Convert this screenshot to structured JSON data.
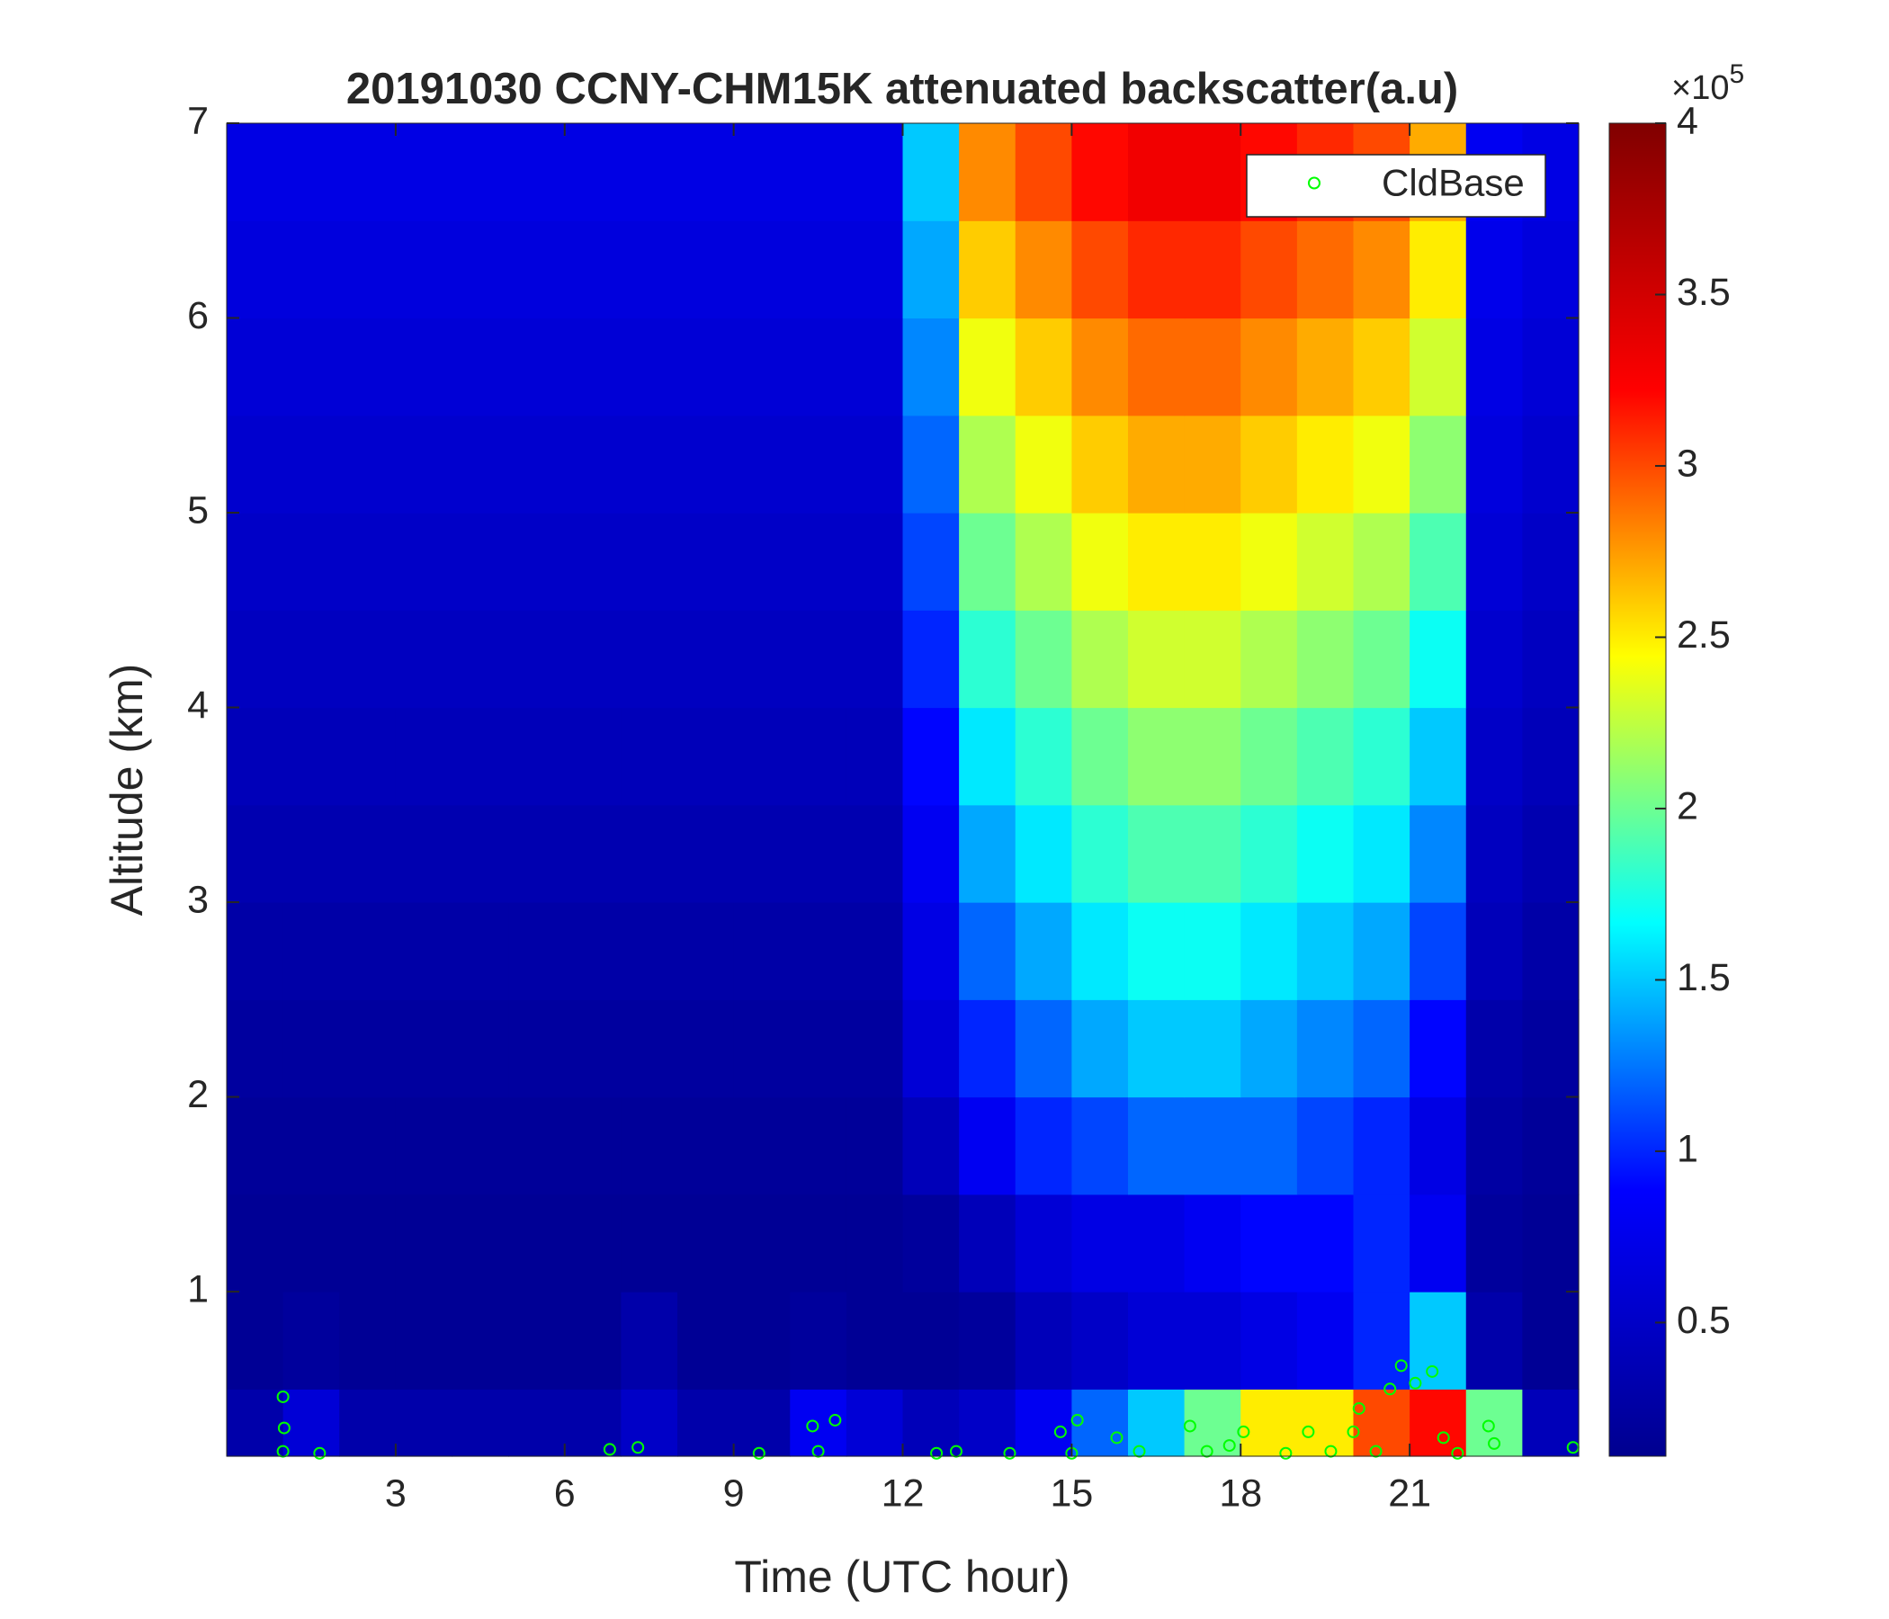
{
  "chart_data": {
    "type": "heatmap",
    "title": "20191030 CCNY-CHM15K attenuated backscatter(a.u)",
    "xlabel": "Time (UTC hour)",
    "ylabel": "Altitude (km)",
    "xlim": [
      0,
      24
    ],
    "ylim": [
      0.155,
      7
    ],
    "xticks": [
      3,
      6,
      9,
      12,
      15,
      18,
      21
    ],
    "yticks": [
      1,
      2,
      3,
      4,
      5,
      6,
      7
    ],
    "x_edges": [
      0,
      1,
      2,
      3,
      4,
      5,
      6,
      7,
      8,
      9,
      10,
      11,
      12,
      13,
      14,
      15,
      16,
      17,
      18,
      19,
      20,
      21,
      22,
      23,
      24
    ],
    "y_edges": [
      0.155,
      0.5,
      1,
      1.5,
      2,
      2.5,
      3,
      3.5,
      4,
      4.5,
      5,
      5.5,
      6,
      6.5,
      7
    ],
    "z": [
      [
        0.3,
        0.6,
        0.3,
        0.3,
        0.3,
        0.3,
        0.3,
        0.5,
        0.3,
        0.3,
        0.8,
        0.6,
        0.4,
        0.5,
        0.8,
        1.2,
        1.5,
        2.0,
        2.5,
        2.5,
        3.0,
        3.2,
        2.0,
        0.4
      ],
      [
        0.15,
        0.2,
        0.15,
        0.15,
        0.15,
        0.15,
        0.15,
        0.3,
        0.15,
        0.15,
        0.2,
        0.15,
        0.15,
        0.2,
        0.4,
        0.5,
        0.6,
        0.6,
        0.7,
        0.8,
        1.0,
        1.5,
        0.3,
        0.15
      ],
      [
        0.15,
        0.15,
        0.15,
        0.15,
        0.15,
        0.15,
        0.15,
        0.15,
        0.15,
        0.15,
        0.15,
        0.15,
        0.2,
        0.4,
        0.6,
        0.7,
        0.7,
        0.8,
        0.9,
        0.9,
        1.0,
        0.8,
        0.2,
        0.15
      ],
      [
        0.18,
        0.18,
        0.18,
        0.18,
        0.18,
        0.18,
        0.18,
        0.18,
        0.18,
        0.18,
        0.18,
        0.18,
        0.4,
        0.8,
        1.0,
        1.1,
        1.2,
        1.2,
        1.2,
        1.1,
        1.0,
        0.7,
        0.25,
        0.18
      ],
      [
        0.22,
        0.22,
        0.22,
        0.22,
        0.22,
        0.22,
        0.22,
        0.22,
        0.22,
        0.22,
        0.22,
        0.22,
        0.6,
        1.0,
        1.2,
        1.4,
        1.5,
        1.5,
        1.4,
        1.3,
        1.2,
        0.9,
        0.3,
        0.22
      ],
      [
        0.28,
        0.28,
        0.28,
        0.28,
        0.28,
        0.28,
        0.28,
        0.28,
        0.28,
        0.28,
        0.28,
        0.28,
        0.7,
        1.2,
        1.4,
        1.6,
        1.7,
        1.7,
        1.6,
        1.5,
        1.4,
        1.1,
        0.4,
        0.28
      ],
      [
        0.34,
        0.34,
        0.34,
        0.34,
        0.34,
        0.34,
        0.34,
        0.34,
        0.34,
        0.34,
        0.34,
        0.34,
        0.8,
        1.4,
        1.6,
        1.8,
        1.9,
        1.9,
        1.8,
        1.7,
        1.6,
        1.3,
        0.45,
        0.34
      ],
      [
        0.4,
        0.4,
        0.4,
        0.4,
        0.4,
        0.4,
        0.4,
        0.4,
        0.4,
        0.4,
        0.4,
        0.4,
        0.9,
        1.6,
        1.8,
        2.0,
        2.1,
        2.1,
        2.0,
        1.9,
        1.8,
        1.5,
        0.5,
        0.4
      ],
      [
        0.45,
        0.45,
        0.45,
        0.45,
        0.45,
        0.45,
        0.45,
        0.45,
        0.45,
        0.45,
        0.45,
        0.45,
        1.0,
        1.8,
        2.0,
        2.2,
        2.3,
        2.3,
        2.2,
        2.1,
        2.0,
        1.7,
        0.55,
        0.45
      ],
      [
        0.5,
        0.5,
        0.5,
        0.5,
        0.5,
        0.5,
        0.5,
        0.5,
        0.5,
        0.5,
        0.5,
        0.5,
        1.1,
        2.0,
        2.2,
        2.4,
        2.5,
        2.5,
        2.4,
        2.3,
        2.2,
        1.9,
        0.6,
        0.5
      ],
      [
        0.55,
        0.55,
        0.55,
        0.55,
        0.55,
        0.55,
        0.55,
        0.55,
        0.55,
        0.55,
        0.55,
        0.55,
        1.2,
        2.2,
        2.4,
        2.6,
        2.7,
        2.7,
        2.6,
        2.5,
        2.4,
        2.1,
        0.65,
        0.55
      ],
      [
        0.6,
        0.6,
        0.6,
        0.6,
        0.6,
        0.6,
        0.6,
        0.6,
        0.6,
        0.6,
        0.6,
        0.6,
        1.3,
        2.4,
        2.6,
        2.8,
        2.9,
        2.9,
        2.8,
        2.7,
        2.6,
        2.3,
        0.7,
        0.6
      ],
      [
        0.65,
        0.65,
        0.65,
        0.65,
        0.65,
        0.65,
        0.65,
        0.65,
        0.65,
        0.65,
        0.65,
        0.65,
        1.4,
        2.6,
        2.8,
        3.0,
        3.1,
        3.1,
        3.0,
        2.9,
        2.8,
        2.5,
        0.75,
        0.65
      ],
      [
        0.7,
        0.7,
        0.7,
        0.7,
        0.7,
        0.7,
        0.7,
        0.7,
        0.7,
        0.7,
        0.7,
        0.7,
        1.5,
        2.8,
        3.0,
        3.2,
        3.3,
        3.3,
        3.2,
        3.1,
        3.0,
        2.7,
        0.8,
        0.7
      ]
    ],
    "colormap": [
      "#00008f",
      "#0000ff",
      "#00ffff",
      "#ffff00",
      "#ff0000",
      "#800000"
    ],
    "clim": [
      0.11,
      4
    ],
    "cticks": [
      0.5,
      1,
      1.5,
      2,
      2.5,
      3,
      3.5,
      4
    ],
    "colorbar_multiplier": {
      "base": "×10",
      "exponent": "5"
    },
    "legend": "northeast",
    "series": [
      {
        "name": "CldBase",
        "color": "#00ff00",
        "x": [
          1.0,
          1.02,
          1.0,
          1.65,
          6.8,
          7.3,
          9.45,
          10.4,
          10.5,
          10.8,
          12.6,
          12.95,
          13.9,
          14.8,
          15.1,
          15.0,
          15.8,
          16.2,
          17.1,
          17.4,
          17.8,
          18.05,
          18.8,
          19.2,
          19.6,
          20.0,
          20.1,
          20.4,
          20.65,
          20.85,
          21.1,
          21.4,
          21.6,
          21.85,
          22.4,
          22.5,
          23.9
        ],
        "y": [
          0.46,
          0.3,
          0.18,
          0.17,
          0.19,
          0.2,
          0.17,
          0.31,
          0.18,
          0.34,
          0.17,
          0.18,
          0.17,
          0.28,
          0.34,
          0.17,
          0.25,
          0.18,
          0.31,
          0.18,
          0.21,
          0.28,
          0.17,
          0.28,
          0.18,
          0.28,
          0.4,
          0.18,
          0.5,
          0.62,
          0.53,
          0.59,
          0.25,
          0.17,
          0.31,
          0.22,
          0.2
        ]
      }
    ]
  }
}
